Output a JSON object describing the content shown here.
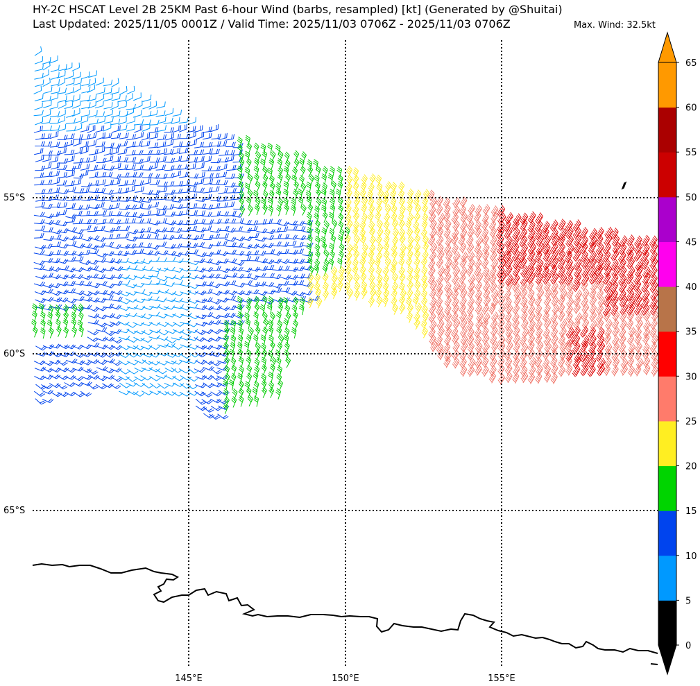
{
  "header": {
    "title": "HY-2C HSCAT Level 2B 25KM Past 6-hour Wind (barbs, resampled) [kt] (Generated by @Shuitai)",
    "subtitle": "Last Updated: 2025/11/05 0001Z / Valid Time: 2025/11/03 0706Z - 2025/11/03 0706Z",
    "max_wind": "Max. Wind: 32.5kt"
  },
  "map": {
    "lat_labels": [
      "55°S",
      "60°S",
      "65°S"
    ],
    "lon_labels": [
      "145°E",
      "150°E",
      "155°E"
    ],
    "gridlines": "dotted",
    "coastline": "Antarctica (George V Land / Adélie Land coast)",
    "wind_field": [
      {
        "region": "western",
        "speed_kt": "5-15",
        "colors": [
          "#0099ff",
          "#0044ee"
        ]
      },
      {
        "region": "central",
        "speed_kt": "15-25",
        "colors": [
          "#00cc00",
          "#ffee22"
        ]
      },
      {
        "region": "eastern",
        "speed_kt": "25-35",
        "colors": [
          "#ff7b6b",
          "#dd0000"
        ]
      }
    ]
  },
  "colorbar": {
    "ticks": [
      "0",
      "5",
      "10",
      "15",
      "20",
      "25",
      "30",
      "35",
      "40",
      "45",
      "50",
      "55",
      "60",
      "65"
    ],
    "bins": [
      {
        "from": 0,
        "to": 5,
        "color": "#000000"
      },
      {
        "from": 5,
        "to": 10,
        "color": "#0099ff"
      },
      {
        "from": 10,
        "to": 15,
        "color": "#0044ee"
      },
      {
        "from": 15,
        "to": 20,
        "color": "#00d400"
      },
      {
        "from": 20,
        "to": 25,
        "color": "#ffee22"
      },
      {
        "from": 25,
        "to": 30,
        "color": "#ff7b6b"
      },
      {
        "from": 30,
        "to": 35,
        "color": "#ff0000"
      },
      {
        "from": 35,
        "to": 40,
        "color": "#b87449"
      },
      {
        "from": 40,
        "to": 45,
        "color": "#ff00ee"
      },
      {
        "from": 45,
        "to": 50,
        "color": "#aa00cc"
      },
      {
        "from": 50,
        "to": 55,
        "color": "#cc0000"
      },
      {
        "from": 55,
        "to": 60,
        "color": "#aa0000"
      },
      {
        "from": 60,
        "to": 65,
        "color": "#ff9900"
      }
    ],
    "extend_low_color": "#000000",
    "extend_high_color": "#ff9900"
  }
}
